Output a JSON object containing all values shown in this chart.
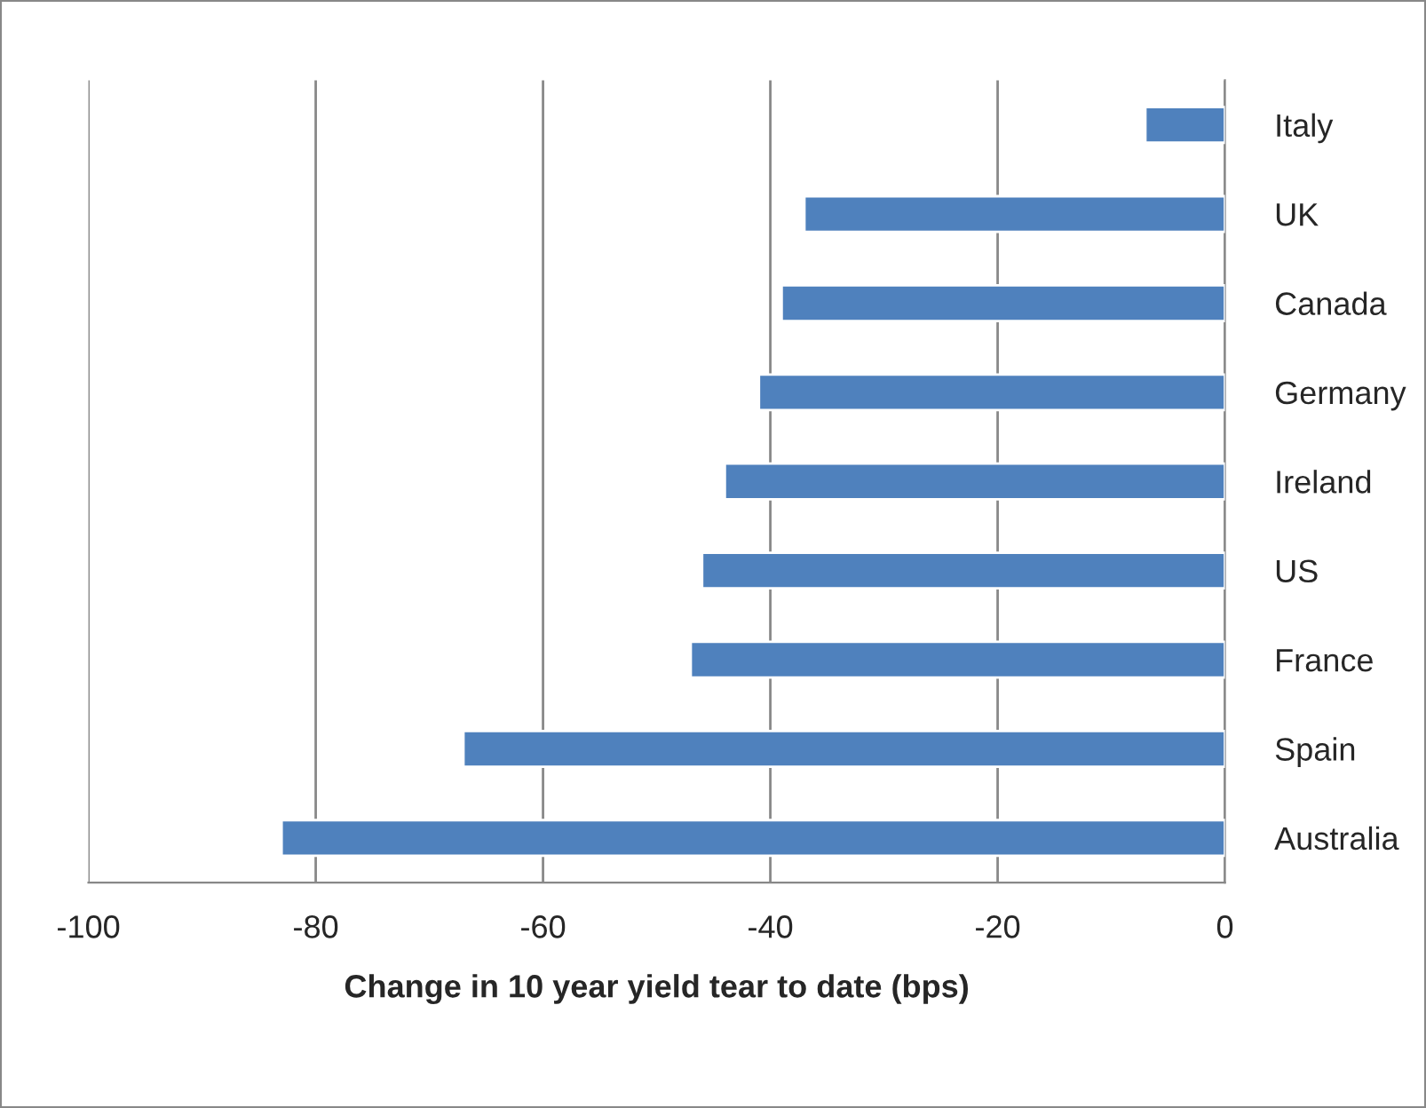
{
  "chart_data": {
    "type": "bar",
    "orientation": "horizontal",
    "xlabel": "Change in 10 year yield tear to date (bps)",
    "categories": [
      "Italy",
      "UK",
      "Canada",
      "Germany",
      "Ireland",
      "US",
      "France",
      "Spain",
      "Australia"
    ],
    "values": [
      -7,
      -37,
      -39,
      -41,
      -44,
      -46,
      -47,
      -67,
      -83
    ],
    "color": "#4f81bd",
    "xlim": [
      -100,
      0
    ],
    "xticks": [
      -100,
      -80,
      -60,
      -40,
      -20,
      0
    ],
    "grid": "x"
  }
}
